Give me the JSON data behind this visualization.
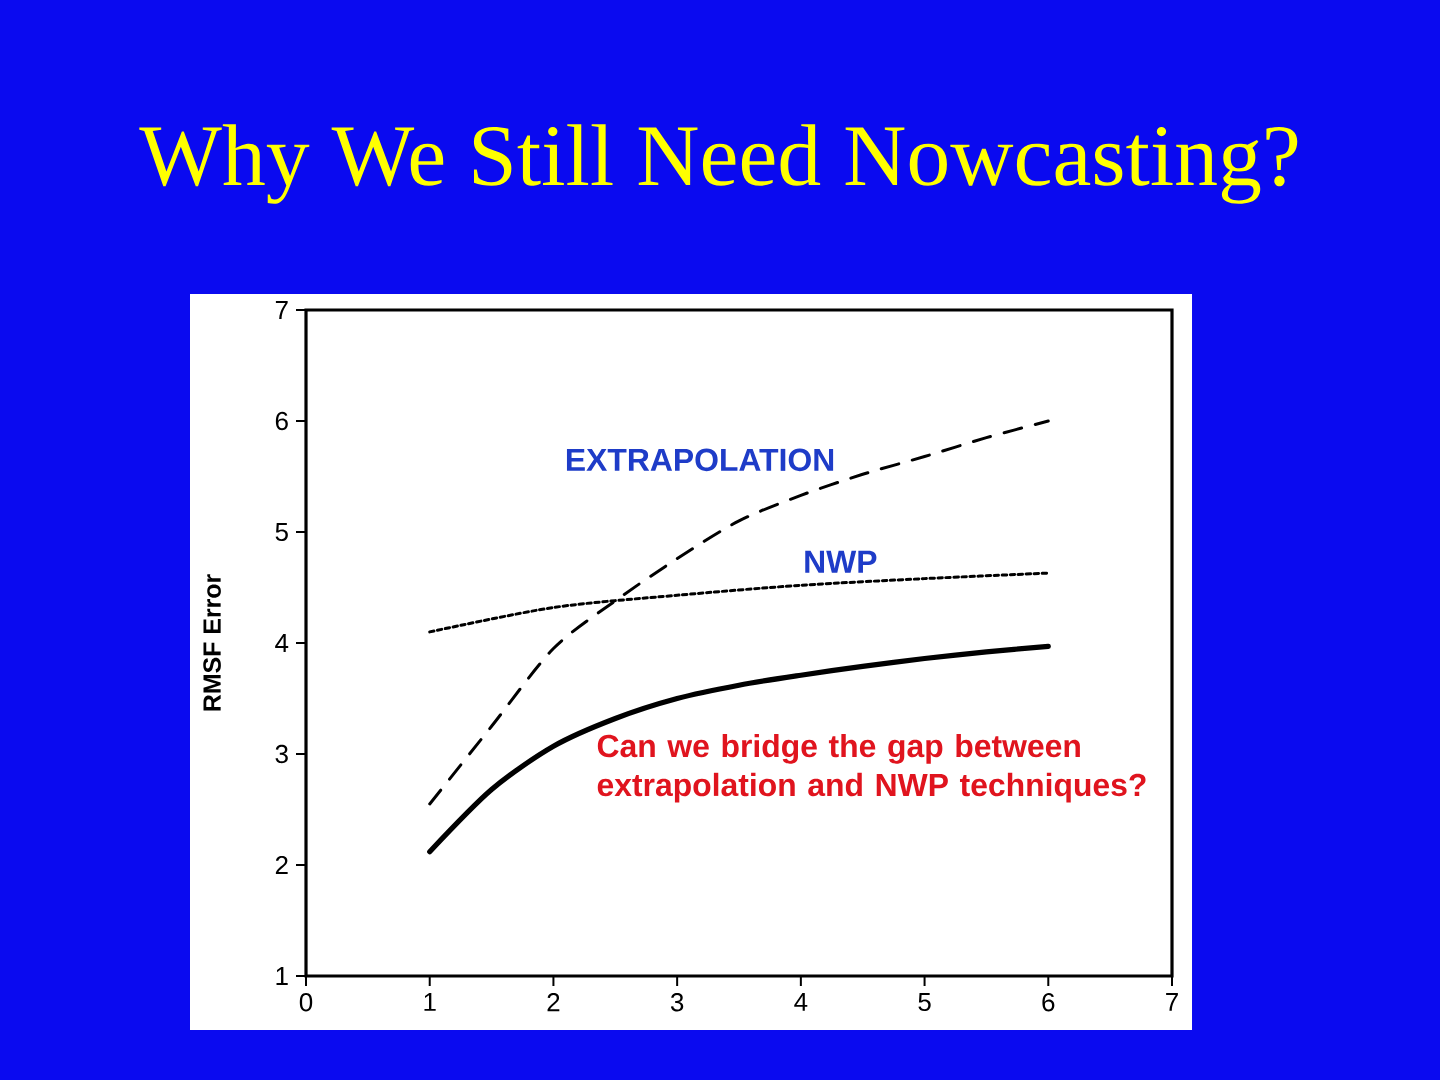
{
  "chart_data": {
    "type": "line",
    "title": "Why We Still Need Nowcasting?",
    "ylabel": "RMSF Error",
    "annotations": [
      "Can we bridge the gap between extrapolation and NWP techniques?"
    ],
    "x": [
      1,
      1.5,
      2,
      2.5,
      3,
      3.5,
      4,
      4.5,
      5,
      5.5,
      6
    ],
    "xlim": [
      0,
      7
    ],
    "ylim": [
      1,
      7
    ],
    "xticks": [
      0,
      1,
      2,
      3,
      4,
      5,
      6,
      7
    ],
    "yticks": [
      1,
      2,
      3,
      4,
      5,
      6,
      7
    ],
    "grid": false,
    "legend": false,
    "marker": "none",
    "series": [
      {
        "name": "EXTRAPOLATION",
        "color": "#000000",
        "line_style": "dashed",
        "values": [
          2.55,
          3.25,
          3.95,
          4.38,
          4.76,
          5.1,
          5.33,
          5.52,
          5.68,
          5.85,
          6.0
        ]
      },
      {
        "name": "NWP",
        "color": "#000000",
        "line_style": "dotted",
        "x": [
          1,
          2,
          3,
          4,
          5,
          6
        ],
        "values": [
          4.1,
          4.32,
          4.43,
          4.52,
          4.58,
          4.63
        ]
      },
      {
        "color": "#000000",
        "line_style": "solid",
        "values": [
          2.12,
          2.68,
          3.07,
          3.32,
          3.5,
          3.62,
          3.71,
          3.79,
          3.86,
          3.92,
          3.97
        ]
      }
    ]
  }
}
